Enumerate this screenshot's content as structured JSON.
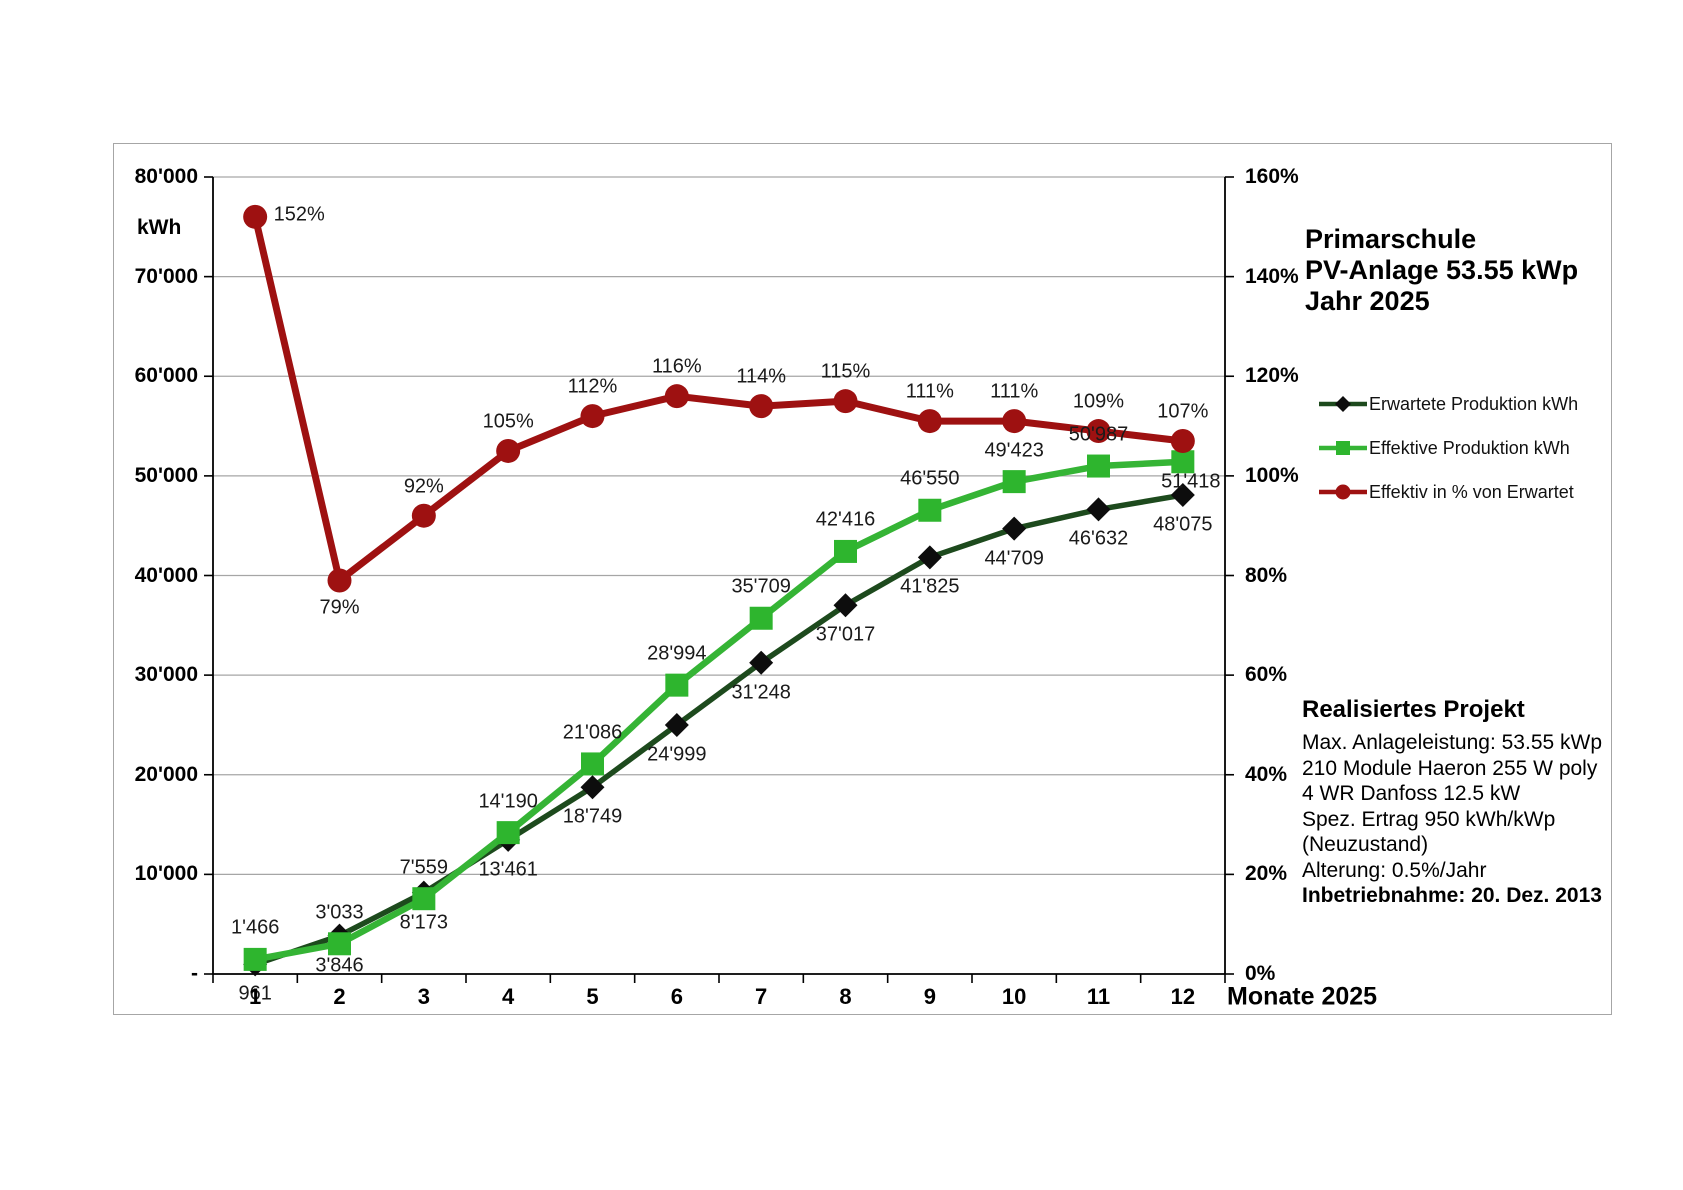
{
  "title": {
    "line1": "Primarschule",
    "line2": "PV-Anlage 53.55 kWp",
    "line3": "Jahr 2025"
  },
  "axes": {
    "left_unit": "kWh",
    "x_title": "Monate 2025",
    "left_tick_labels": [
      "80'000",
      "70'000",
      "60'000",
      "50'000",
      "40'000",
      "30'000",
      "20'000",
      "10'000",
      "-"
    ],
    "right_tick_labels": [
      "160%",
      "140%",
      "120%",
      "100%",
      "80%",
      "60%",
      "40%",
      "20%",
      "0%"
    ],
    "month_labels": [
      "1",
      "2",
      "3",
      "4",
      "5",
      "6",
      "7",
      "8",
      "9",
      "10",
      "11",
      "12"
    ]
  },
  "legend": [
    {
      "label": "Erwartete Produktion kWh"
    },
    {
      "label": "Effektive Produktion kWh"
    },
    {
      "label": "Effektiv in % von Erwartet"
    }
  ],
  "project_info": {
    "heading": "Realisiertes Projekt",
    "lines": [
      "Max. Anlageleistung: 53.55 kWp",
      "210 Module Haeron 255 W poly",
      "4 WR Danfoss 12.5 kW",
      "Spez. Ertrag 950 kWh/kWp",
      "(Neuzustand)",
      "Alterung: 0.5%/Jahr"
    ],
    "bold_line": "Inbetriebnahme: 20. Dez. 2013"
  },
  "style": {
    "grid_color": "#a6a6a6",
    "axis_color": "#000000",
    "frame_color": "#a6a6a6",
    "data_label_color": "#1a1a1a"
  },
  "chart_data": {
    "type": "line",
    "title": "Primarschule PV-Anlage 53.55 kWp Jahr 2025",
    "x_label": "Monate 2025",
    "categories": [
      1,
      2,
      3,
      4,
      5,
      6,
      7,
      8,
      9,
      10,
      11,
      12
    ],
    "grid": true,
    "legend_position": "right",
    "left_axis": {
      "label": "kWh",
      "min": 0,
      "max": 80000,
      "tick_step": 10000
    },
    "right_axis": {
      "label": "%",
      "min_pct": 0,
      "max_pct": 160,
      "tick_step_pct": 20
    },
    "series": [
      {
        "id": "erwartete",
        "name": "Erwartete Produktion kWh",
        "axis": "left",
        "color": "#1d4a1d",
        "marker": "diamond",
        "marker_color": "#0d0d0d",
        "values": [
          961,
          3846,
          8173,
          13461,
          18749,
          24999,
          31248,
          37017,
          41825,
          44709,
          46632,
          48075
        ],
        "labels": [
          "961",
          "3'846",
          "8'173",
          "13'461",
          "18'749",
          "24'999",
          "31'248",
          "37'017",
          "41'825",
          "44'709",
          "46'632",
          "48'075"
        ]
      },
      {
        "id": "effektive",
        "name": "Effektive Produktion kWh",
        "axis": "left",
        "color": "#35b435",
        "marker": "square",
        "marker_color": "#2eb52e",
        "values": [
          1466,
          3033,
          7559,
          14190,
          21086,
          28994,
          35709,
          42416,
          46550,
          49423,
          50987,
          51418
        ],
        "labels": [
          "1'466",
          "3'033",
          "7'559",
          "14'190",
          "21'086",
          "28'994",
          "35'709",
          "42'416",
          "46'550",
          "49'423",
          "50'987",
          "51'418"
        ]
      },
      {
        "id": "prozent",
        "name": "Effektiv in % von Erwartet",
        "axis": "right",
        "color": "#9e1111",
        "marker": "circle",
        "marker_color": "#9e1111",
        "values": [
          152,
          79,
          92,
          105,
          112,
          116,
          114,
          115,
          111,
          111,
          109,
          107
        ],
        "labels": [
          "152%",
          "79%",
          "92%",
          "105%",
          "112%",
          "116%",
          "114%",
          "115%",
          "111%",
          "111%",
          "109%",
          "107%"
        ]
      }
    ]
  }
}
